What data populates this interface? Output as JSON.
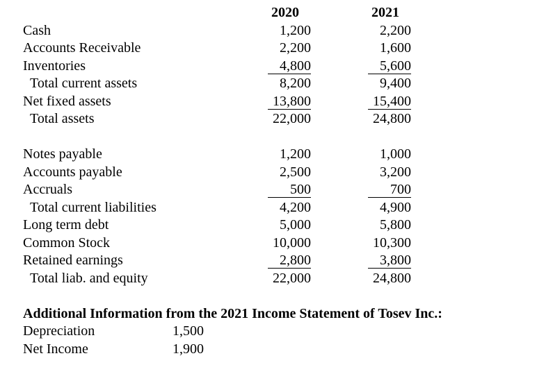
{
  "balance_sheet": {
    "years": [
      "2020",
      "2021"
    ],
    "asset_rows": [
      {
        "label": "Cash",
        "y2020": "1,200",
        "y2021": "2,200",
        "indent": false,
        "underline": false
      },
      {
        "label": "Accounts Receivable",
        "y2020": "2,200",
        "y2021": "1,600",
        "indent": false,
        "underline": false
      },
      {
        "label": "Inventories",
        "y2020": "4,800",
        "y2021": "5,600",
        "indent": false,
        "underline": true
      },
      {
        "label": "Total current assets",
        "y2020": "8,200",
        "y2021": "9,400",
        "indent": true,
        "underline": false
      },
      {
        "label": "Net fixed assets",
        "y2020": "13,800",
        "y2021": "15,400",
        "indent": false,
        "underline": true
      },
      {
        "label": "Total assets",
        "y2020": "22,000",
        "y2021": "24,800",
        "indent": true,
        "underline": false
      }
    ],
    "liability_rows": [
      {
        "label": "Notes payable",
        "y2020": "1,200",
        "y2021": "1,000",
        "indent": false,
        "underline": false
      },
      {
        "label": "Accounts payable",
        "y2020": "2,500",
        "y2021": "3,200",
        "indent": false,
        "underline": false
      },
      {
        "label": "Accruals",
        "y2020": "500",
        "y2021": "700",
        "indent": false,
        "underline": true
      },
      {
        "label": "Total current liabilities",
        "y2020": "4,200",
        "y2021": "4,900",
        "indent": true,
        "underline": false
      },
      {
        "label": "Long term debt",
        "y2020": "5,000",
        "y2021": "5,800",
        "indent": false,
        "underline": false
      },
      {
        "label": "Common Stock",
        "y2020": "10,000",
        "y2021": "10,300",
        "indent": false,
        "underline": false
      },
      {
        "label": "Retained earnings",
        "y2020": "2,800",
        "y2021": "3,800",
        "indent": false,
        "underline": true
      },
      {
        "label": "Total liab. and equity",
        "y2020": "22,000",
        "y2021": "24,800",
        "indent": true,
        "underline": false
      }
    ]
  },
  "additional_info": {
    "heading": "Additional Information from the 2021 Income Statement of Tosev Inc.:",
    "items": [
      {
        "label": "Depreciation",
        "value": "1,500"
      },
      {
        "label": "Net Income",
        "value": "1,900"
      }
    ]
  }
}
